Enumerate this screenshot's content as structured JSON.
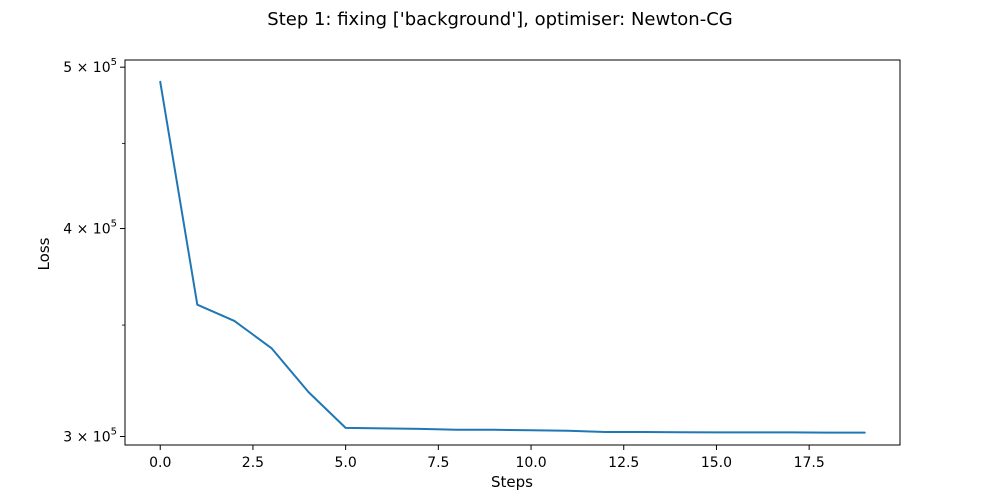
{
  "chart_data": {
    "type": "line",
    "title": "Step 1: fixing ['background'], optimiser: Newton-CG",
    "xlabel": "Steps",
    "ylabel": "Loss",
    "xlim": [
      -0.95,
      19.95
    ],
    "ylim": [
      296500,
      505000
    ],
    "yscale": "log",
    "grid": false,
    "legend": "none",
    "x_ticks": [
      {
        "value": 0.0,
        "label": "0.0"
      },
      {
        "value": 2.5,
        "label": "2.5"
      },
      {
        "value": 5.0,
        "label": "5.0"
      },
      {
        "value": 7.5,
        "label": "7.5"
      },
      {
        "value": 10.0,
        "label": "10.0"
      },
      {
        "value": 12.5,
        "label": "12.5"
      },
      {
        "value": 15.0,
        "label": "15.0"
      },
      {
        "value": 17.5,
        "label": "17.5"
      }
    ],
    "y_ticks": [
      {
        "value": 300000,
        "mantissa": "3",
        "base": "10",
        "exponent": "5"
      },
      {
        "value": 400000,
        "mantissa": "4",
        "base": "10",
        "exponent": "5"
      },
      {
        "value": 500000,
        "mantissa": "5",
        "base": "10",
        "exponent": "5"
      }
    ],
    "y_minor_ticks": [
      350000,
      450000
    ],
    "series": [
      {
        "color": "#1f77b4",
        "x": [
          0,
          1,
          2,
          3,
          4,
          5,
          6,
          7,
          8,
          9,
          10,
          11,
          12,
          13,
          14,
          15,
          16,
          17,
          18,
          19
        ],
        "y": [
          490000,
          360000,
          352000,
          339000,
          319000,
          303600,
          303400,
          303200,
          302800,
          302800,
          302600,
          302400,
          301900,
          301900,
          301800,
          301700,
          301700,
          301700,
          301600,
          301600
        ]
      }
    ]
  }
}
